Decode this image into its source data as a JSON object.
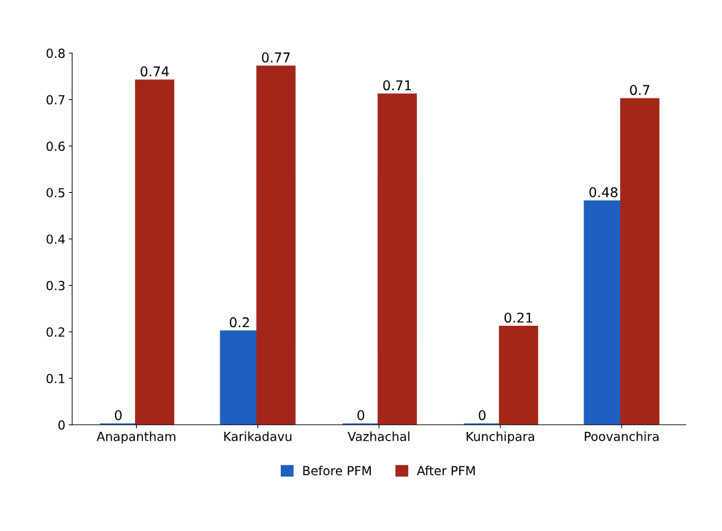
{
  "chart_data": {
    "type": "bar",
    "categories": [
      "Anapantham",
      "Karikadavu",
      "Vazhachal",
      "Kunchipara",
      "Poovanchira"
    ],
    "series": [
      {
        "name": "Before PFM",
        "color": "#1f5fbf",
        "values": [
          0,
          0.2,
          0,
          0,
          0.48
        ]
      },
      {
        "name": "After PFM",
        "color": "#a3261b",
        "values": [
          0.74,
          0.77,
          0.71,
          0.21,
          0.7
        ]
      }
    ],
    "ylim": [
      0,
      0.8
    ],
    "yticks": [
      0,
      0.1,
      0.2,
      0.3,
      0.4,
      0.5,
      0.6,
      0.7,
      0.8
    ],
    "data_labels": true,
    "grid": false,
    "legend": "bottom"
  }
}
